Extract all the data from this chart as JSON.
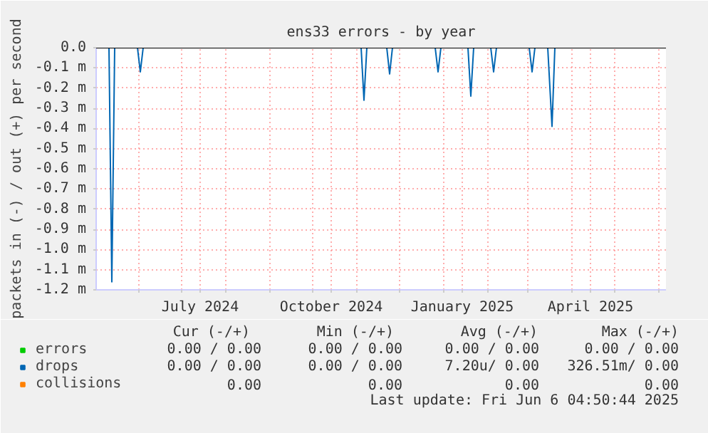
{
  "chart_data": {
    "type": "line",
    "title": "ens33 errors - by year",
    "ylabel": "packets in (-) / out (+) per second",
    "xlim": [
      "2024-05-02",
      "2025-06-06"
    ],
    "xticks": [
      {
        "value": "2024-06-01",
        "label": null
      },
      {
        "value": "2024-07-01",
        "label": null
      },
      {
        "value": "2024-07-14",
        "label": "July 2024"
      },
      {
        "value": "2024-08-01",
        "label": null
      },
      {
        "value": "2024-09-01",
        "label": null
      },
      {
        "value": "2024-10-01",
        "label": null
      },
      {
        "value": "2024-10-14",
        "label": "October 2024"
      },
      {
        "value": "2024-11-01",
        "label": null
      },
      {
        "value": "2024-12-01",
        "label": null
      },
      {
        "value": "2025-01-01",
        "label": null
      },
      {
        "value": "2025-01-14",
        "label": "January 2025"
      },
      {
        "value": "2025-02-01",
        "label": null
      },
      {
        "value": "2025-03-01",
        "label": null
      },
      {
        "value": "2025-04-01",
        "label": null
      },
      {
        "value": "2025-04-14",
        "label": "April 2025"
      },
      {
        "value": "2025-05-01",
        "label": null
      },
      {
        "value": "2025-06-01",
        "label": null
      }
    ],
    "ylim": [
      -1.2,
      0.0
    ],
    "yticks": [
      {
        "value": 0.0,
        "label": "0.0"
      },
      {
        "value": -0.1,
        "label": "-0.1 m"
      },
      {
        "value": -0.2,
        "label": "-0.2 m"
      },
      {
        "value": -0.3,
        "label": "-0.3 m"
      },
      {
        "value": -0.4,
        "label": "-0.4 m"
      },
      {
        "value": -0.5,
        "label": "-0.5 m"
      },
      {
        "value": -0.6,
        "label": "-0.6 m"
      },
      {
        "value": -0.7,
        "label": "-0.7 m"
      },
      {
        "value": -0.8,
        "label": "-0.8 m"
      },
      {
        "value": -0.9,
        "label": "-0.9 m"
      },
      {
        "value": -1.0,
        "label": "-1.0 m"
      },
      {
        "value": -1.1,
        "label": "-1.1 m"
      },
      {
        "value": -1.2,
        "label": "-1.2 m"
      }
    ],
    "grid": true,
    "legend": "bottom",
    "marker": "none",
    "line_style": "solid",
    "series": [
      {
        "name": "errors",
        "color": "#00cc00"
      },
      {
        "name": "collisions",
        "color": "#ff8000"
      },
      {
        "name": "drops",
        "color": "#0066b3",
        "x": [
          "2024-05-02",
          "2024-05-11",
          "2024-05-13",
          "2024-05-15",
          "2024-05-31",
          "2024-06-02",
          "2024-06-04",
          "2024-11-04",
          "2024-11-06",
          "2024-11-08",
          "2024-11-22",
          "2024-11-24",
          "2024-11-26",
          "2024-12-26",
          "2024-12-28",
          "2024-12-30",
          "2025-01-18",
          "2025-01-20",
          "2025-01-22",
          "2025-02-03",
          "2025-02-05",
          "2025-02-07",
          "2025-03-02",
          "2025-03-04",
          "2025-03-06",
          "2025-03-15",
          "2025-03-18",
          "2025-03-20"
        ],
        "values": [
          0,
          0,
          -1.16,
          0,
          0,
          -0.12,
          0,
          0,
          -0.26,
          0,
          0,
          -0.13,
          0,
          0,
          -0.12,
          0,
          0,
          -0.24,
          0,
          0,
          -0.12,
          0,
          0,
          -0.12,
          0,
          0,
          -0.39,
          0
        ]
      }
    ],
    "ref_lines": [
      {
        "axis": "y",
        "value": 0.0,
        "color": "#000000",
        "line_style": "solid"
      }
    ],
    "annotations": [
      "Cur (-/+)",
      "Min (-/+)",
      "Avg (-/+)",
      "Max (-/+)",
      "0.00 / 0.00",
      "0.00 / 0.00",
      "0.00 / 0.00",
      "0.00 / 0.00",
      "0.00 / 0.00",
      "0.00 / 0.00",
      "7.20u/ 0.00",
      "326.51m/ 0.00",
      "0.00",
      "0.00",
      "0.00",
      "0.00",
      "Last update: Fri Jun  6 04:50:44 2025"
    ]
  }
}
